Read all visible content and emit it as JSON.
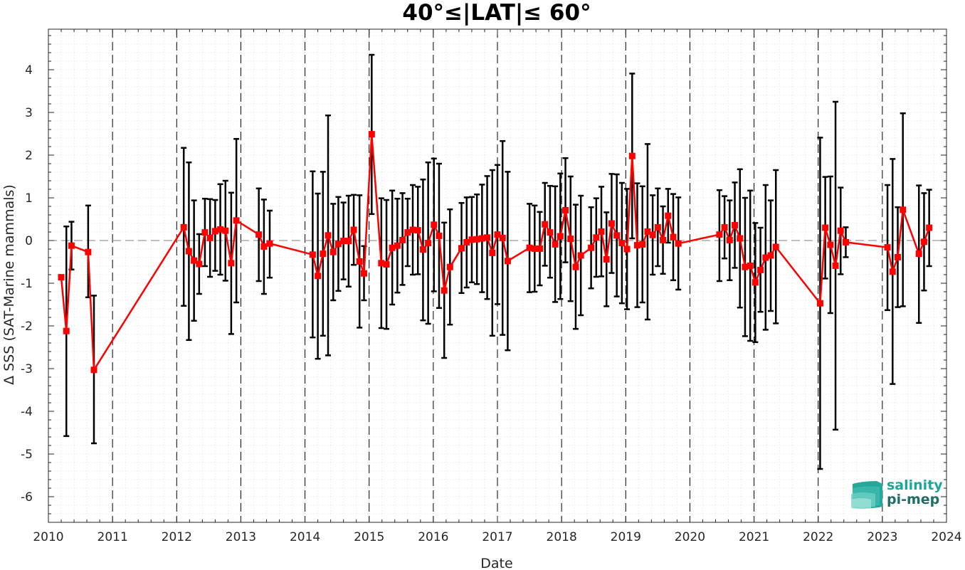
{
  "chart_data": {
    "type": "line",
    "title": "40°≤|LAT|≤ 60°",
    "xlabel": "Date",
    "ylabel": "Δ SSS (SAT-Marine mammals)",
    "xlim": [
      2010,
      2024
    ],
    "ylim": [
      -6.6,
      4.95
    ],
    "x_ticks": [
      "2010",
      "2011",
      "2012",
      "2013",
      "2014",
      "2015",
      "2016",
      "2017",
      "2018",
      "2019",
      "2020",
      "2021",
      "2022",
      "2023",
      "2024"
    ],
    "y_ticks": [
      "-6",
      "-5",
      "-4",
      "-3",
      "-2",
      "-1",
      "0",
      "1",
      "2",
      "3",
      "4"
    ],
    "grid": "minor dotted",
    "year_separators": "dashed vertical lines at each January",
    "zero_line": "dashed horizontal line at 0",
    "series": [
      {
        "color": "#ff0000",
        "marker": "square",
        "error_bar_color": "#000000",
        "points": [
          {
            "x": 2010.2,
            "y": -0.86,
            "lo": -0.9,
            "hi": -0.82
          },
          {
            "x": 2010.28,
            "y": -2.12,
            "lo": -4.58,
            "hi": 0.33
          },
          {
            "x": 2010.36,
            "y": -0.12,
            "lo": -0.68,
            "hi": 0.44
          },
          {
            "x": 2010.62,
            "y": -0.27,
            "lo": -1.33,
            "hi": 0.82
          },
          {
            "x": 2010.71,
            "y": -3.03,
            "lo": -4.75,
            "hi": -1.29
          },
          {
            "x": 2012.11,
            "y": 0.31,
            "lo": -1.53,
            "hi": 2.17
          },
          {
            "x": 2012.19,
            "y": -0.25,
            "lo": -2.33,
            "hi": 1.83
          },
          {
            "x": 2012.27,
            "y": -0.47,
            "lo": -1.88,
            "hi": 0.94
          },
          {
            "x": 2012.35,
            "y": -0.55,
            "lo": -1.25,
            "hi": 0.15
          },
          {
            "x": 2012.44,
            "y": 0.19,
            "lo": -0.6,
            "hi": 0.98
          },
          {
            "x": 2012.52,
            "y": 0.06,
            "lo": -0.85,
            "hi": 0.97
          },
          {
            "x": 2012.6,
            "y": 0.22,
            "lo": -0.71,
            "hi": 0.95
          },
          {
            "x": 2012.68,
            "y": 0.26,
            "lo": -0.8,
            "hi": 1.32
          },
          {
            "x": 2012.76,
            "y": 0.23,
            "lo": -0.94,
            "hi": 1.4
          },
          {
            "x": 2012.85,
            "y": -0.53,
            "lo": -2.19,
            "hi": 1.12
          },
          {
            "x": 2012.93,
            "y": 0.47,
            "lo": -1.45,
            "hi": 2.38
          },
          {
            "x": 2013.28,
            "y": 0.14,
            "lo": -0.95,
            "hi": 1.22
          },
          {
            "x": 2013.36,
            "y": -0.14,
            "lo": -1.25,
            "hi": 0.96
          },
          {
            "x": 2013.45,
            "y": -0.07,
            "lo": -0.87,
            "hi": 0.7
          },
          {
            "x": 2014.12,
            "y": -0.33,
            "lo": -2.27,
            "hi": 1.62
          },
          {
            "x": 2014.2,
            "y": -0.83,
            "lo": -2.77,
            "hi": 1.1
          },
          {
            "x": 2014.28,
            "y": -0.31,
            "lo": -2.23,
            "hi": 1.61
          },
          {
            "x": 2014.36,
            "y": 0.12,
            "lo": -2.69,
            "hi": 2.93
          },
          {
            "x": 2014.44,
            "y": -0.27,
            "lo": -1.4,
            "hi": 0.86
          },
          {
            "x": 2014.52,
            "y": -0.08,
            "lo": -1.18,
            "hi": 1.02
          },
          {
            "x": 2014.6,
            "y": -0.01,
            "lo": -0.91,
            "hi": 0.89
          },
          {
            "x": 2014.68,
            "y": -0.01,
            "lo": -1.08,
            "hi": 1.05
          },
          {
            "x": 2014.76,
            "y": 0.25,
            "lo": -0.57,
            "hi": 1.07
          },
          {
            "x": 2014.85,
            "y": -0.49,
            "lo": -2.04,
            "hi": 1.06
          },
          {
            "x": 2014.92,
            "y": -0.77,
            "lo": -1.4,
            "hi": -0.13
          },
          {
            "x": 2015.04,
            "y": 2.49,
            "lo": 0.62,
            "hi": 4.35
          },
          {
            "x": 2015.19,
            "y": -0.53,
            "lo": -2.05,
            "hi": 0.99
          },
          {
            "x": 2015.27,
            "y": -0.56,
            "lo": -2.07,
            "hi": 0.95
          },
          {
            "x": 2015.36,
            "y": -0.17,
            "lo": -1.5,
            "hi": 1.17
          },
          {
            "x": 2015.44,
            "y": -0.12,
            "lo": -1.22,
            "hi": 0.98
          },
          {
            "x": 2015.52,
            "y": 0.01,
            "lo": -1.04,
            "hi": 1.11
          },
          {
            "x": 2015.6,
            "y": 0.19,
            "lo": -0.6,
            "hi": 0.98
          },
          {
            "x": 2015.68,
            "y": 0.25,
            "lo": -0.8,
            "hi": 1.3
          },
          {
            "x": 2015.76,
            "y": 0.24,
            "lo": -0.79,
            "hi": 1.26
          },
          {
            "x": 2015.84,
            "y": -0.21,
            "lo": -1.87,
            "hi": 1.43
          },
          {
            "x": 2015.92,
            "y": -0.06,
            "lo": -1.95,
            "hi": 1.83
          },
          {
            "x": 2016.01,
            "y": 0.37,
            "lo": -1.19,
            "hi": 1.92
          },
          {
            "x": 2016.09,
            "y": 0.11,
            "lo": -1.58,
            "hi": 1.8
          },
          {
            "x": 2016.17,
            "y": -1.17,
            "lo": -2.75,
            "hi": 0.42
          },
          {
            "x": 2016.26,
            "y": -0.62,
            "lo": -1.97,
            "hi": 0.73
          },
          {
            "x": 2016.44,
            "y": -0.18,
            "lo": -1.23,
            "hi": 0.88
          },
          {
            "x": 2016.52,
            "y": -0.04,
            "lo": -1.1,
            "hi": 1.01
          },
          {
            "x": 2016.6,
            "y": 0.02,
            "lo": -0.98,
            "hi": 1.02
          },
          {
            "x": 2016.68,
            "y": 0.03,
            "lo": -1.02,
            "hi": 1.08
          },
          {
            "x": 2016.76,
            "y": 0.05,
            "lo": -1.21,
            "hi": 1.31
          },
          {
            "x": 2016.84,
            "y": 0.07,
            "lo": -1.37,
            "hi": 1.51
          },
          {
            "x": 2016.92,
            "y": -0.29,
            "lo": -2.23,
            "hi": 1.65
          },
          {
            "x": 2017.0,
            "y": 0.14,
            "lo": -1.49,
            "hi": 1.77
          },
          {
            "x": 2017.08,
            "y": 0.06,
            "lo": -2.21,
            "hi": 2.33
          },
          {
            "x": 2017.16,
            "y": -0.48,
            "lo": -2.57,
            "hi": 1.61
          },
          {
            "x": 2017.5,
            "y": -0.17,
            "lo": -1.21,
            "hi": 0.86
          },
          {
            "x": 2017.58,
            "y": -0.19,
            "lo": -1.2,
            "hi": 0.82
          },
          {
            "x": 2017.66,
            "y": -0.19,
            "lo": -1.05,
            "hi": 0.67
          },
          {
            "x": 2017.74,
            "y": 0.38,
            "lo": -0.59,
            "hi": 1.35
          },
          {
            "x": 2017.82,
            "y": 0.19,
            "lo": -0.87,
            "hi": 1.28
          },
          {
            "x": 2017.9,
            "y": -0.09,
            "lo": -1.44,
            "hi": 1.27
          },
          {
            "x": 2017.98,
            "y": 0.1,
            "lo": -1.37,
            "hi": 1.57
          },
          {
            "x": 2018.06,
            "y": 0.71,
            "lo": -0.51,
            "hi": 1.93
          },
          {
            "x": 2018.14,
            "y": 0.04,
            "lo": -1.42,
            "hi": 1.5
          },
          {
            "x": 2018.22,
            "y": -0.62,
            "lo": -2.07,
            "hi": 0.84
          },
          {
            "x": 2018.3,
            "y": -0.35,
            "lo": -1.75,
            "hi": 1.05
          },
          {
            "x": 2018.46,
            "y": -0.17,
            "lo": -1.12,
            "hi": 0.78
          },
          {
            "x": 2018.54,
            "y": 0.07,
            "lo": -0.85,
            "hi": 0.99
          },
          {
            "x": 2018.62,
            "y": 0.21,
            "lo": -0.84,
            "hi": 1.26
          },
          {
            "x": 2018.7,
            "y": -0.44,
            "lo": -1.54,
            "hi": 0.66
          },
          {
            "x": 2018.78,
            "y": 0.4,
            "lo": -0.76,
            "hi": 1.56
          },
          {
            "x": 2018.86,
            "y": 0.12,
            "lo": -1.31,
            "hi": 1.55
          },
          {
            "x": 2018.94,
            "y": -0.06,
            "lo": -1.47,
            "hi": 1.35
          },
          {
            "x": 2019.02,
            "y": -0.2,
            "lo": -1.61,
            "hi": 1.21
          },
          {
            "x": 2019.1,
            "y": 1.98,
            "lo": 0.05,
            "hi": 3.91
          },
          {
            "x": 2019.18,
            "y": -0.11,
            "lo": -1.56,
            "hi": 1.34
          },
          {
            "x": 2019.26,
            "y": -0.09,
            "lo": -1.45,
            "hi": 1.27
          },
          {
            "x": 2019.34,
            "y": 0.21,
            "lo": -1.85,
            "hi": 2.26
          },
          {
            "x": 2019.42,
            "y": 0.13,
            "lo": -0.8,
            "hi": 1.06
          },
          {
            "x": 2019.5,
            "y": 0.31,
            "lo": -0.6,
            "hi": 1.22
          },
          {
            "x": 2019.58,
            "y": 0.01,
            "lo": -0.78,
            "hi": 0.8
          },
          {
            "x": 2019.66,
            "y": 0.58,
            "lo": -0.05,
            "hi": 1.21
          },
          {
            "x": 2019.74,
            "y": 0.08,
            "lo": -0.93,
            "hi": 1.09
          },
          {
            "x": 2019.82,
            "y": -0.07,
            "lo": -1.15,
            "hi": 1.01
          },
          {
            "x": 2020.46,
            "y": 0.14,
            "lo": -0.95,
            "hi": 1.18
          },
          {
            "x": 2020.54,
            "y": 0.31,
            "lo": -0.42,
            "hi": 1.04
          },
          {
            "x": 2020.62,
            "y": 0.01,
            "lo": -0.93,
            "hi": 0.94
          },
          {
            "x": 2020.7,
            "y": 0.36,
            "lo": -0.64,
            "hi": 1.36
          },
          {
            "x": 2020.78,
            "y": 0.05,
            "lo": -1.57,
            "hi": 1.67
          },
          {
            "x": 2020.86,
            "y": -0.62,
            "lo": -2.24,
            "hi": 1.0
          },
          {
            "x": 2020.94,
            "y": -0.59,
            "lo": -2.35,
            "hi": 1.17
          },
          {
            "x": 2021.02,
            "y": -0.98,
            "lo": -2.38,
            "hi": 0.41
          },
          {
            "x": 2021.1,
            "y": -0.69,
            "lo": -1.67,
            "hi": 0.3
          },
          {
            "x": 2021.18,
            "y": -0.4,
            "lo": -2.09,
            "hi": 1.3
          },
          {
            "x": 2021.26,
            "y": -0.35,
            "lo": -1.65,
            "hi": 0.94
          },
          {
            "x": 2021.34,
            "y": -0.15,
            "lo": -1.94,
            "hi": 1.65
          },
          {
            "x": 2022.03,
            "y": -1.47,
            "lo": -5.35,
            "hi": 2.41
          },
          {
            "x": 2022.11,
            "y": 0.3,
            "lo": -0.89,
            "hi": 1.49
          },
          {
            "x": 2022.19,
            "y": -0.1,
            "lo": -1.7,
            "hi": 1.5
          },
          {
            "x": 2022.27,
            "y": -0.59,
            "lo": -4.43,
            "hi": 3.25
          },
          {
            "x": 2022.35,
            "y": 0.23,
            "lo": -0.79,
            "hi": 1.24
          },
          {
            "x": 2022.43,
            "y": -0.04,
            "lo": -0.39,
            "hi": 0.31
          },
          {
            "x": 2023.08,
            "y": -0.16,
            "lo": -1.63,
            "hi": 1.3
          },
          {
            "x": 2023.16,
            "y": -0.73,
            "lo": -3.36,
            "hi": 1.91
          },
          {
            "x": 2023.24,
            "y": -0.39,
            "lo": -1.56,
            "hi": 0.78
          },
          {
            "x": 2023.32,
            "y": 0.72,
            "lo": -1.54,
            "hi": 2.98
          },
          {
            "x": 2023.57,
            "y": -0.31,
            "lo": -1.93,
            "hi": 1.29
          },
          {
            "x": 2023.65,
            "y": -0.03,
            "lo": -1.17,
            "hi": 1.11
          },
          {
            "x": 2023.73,
            "y": 0.3,
            "lo": -0.6,
            "hi": 1.19
          }
        ]
      }
    ]
  },
  "logo": {
    "line1": "salinity",
    "line2": "pi-mep",
    "line1_color": "#1aa79a",
    "line2_color": "#1f6e68"
  }
}
